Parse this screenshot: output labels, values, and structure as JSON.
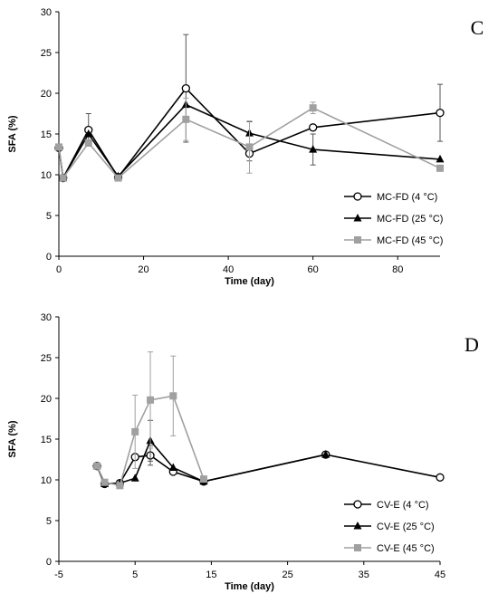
{
  "chart_data": [
    {
      "panel_label": "C",
      "type": "line",
      "xlabel": "Time (day)",
      "ylabel": "SFA (%)",
      "xlim": [
        0,
        90
      ],
      "ylim": [
        0,
        30
      ],
      "x_ticks": [
        0,
        20,
        40,
        60,
        80
      ],
      "y_ticks": [
        0,
        5,
        10,
        15,
        20,
        25,
        30
      ],
      "grid": false,
      "legend_position": "bottom-right",
      "series": [
        {
          "name": "MC-FD (4 °C)",
          "marker": "circle-open",
          "color": "#000000",
          "x": [
            0,
            1,
            7,
            14,
            30,
            45,
            60,
            90
          ],
          "y": [
            13.3,
            9.6,
            15.5,
            9.7,
            20.6,
            12.6,
            15.8,
            17.6
          ],
          "error": [
            0,
            0,
            2.0,
            0,
            6.6,
            0.9,
            0,
            3.5
          ]
        },
        {
          "name": "MC-FD (25 °C)",
          "marker": "triangle",
          "color": "#000000",
          "x": [
            0,
            1,
            7,
            14,
            30,
            45,
            60,
            90
          ],
          "y": [
            13.4,
            9.6,
            15.0,
            9.8,
            18.6,
            15.1,
            13.1,
            11.9
          ],
          "error": [
            0,
            0,
            0,
            0,
            0,
            1.4,
            1.9,
            0
          ]
        },
        {
          "name": "MC-FD (45 °C)",
          "marker": "square",
          "color": "#a0a0a0",
          "x": [
            0,
            1,
            7,
            14,
            30,
            45,
            60,
            90
          ],
          "y": [
            13.4,
            9.6,
            13.9,
            9.6,
            16.8,
            13.4,
            18.2,
            10.8
          ],
          "error": [
            0,
            0,
            0,
            0,
            2.6,
            3.2,
            0.7,
            0
          ]
        }
      ]
    },
    {
      "panel_label": "D",
      "type": "line",
      "xlabel": "Time (day)",
      "ylabel": "SFA (%)",
      "xlim": [
        -5,
        45
      ],
      "ylim": [
        0,
        30
      ],
      "x_ticks": [
        -5,
        5,
        15,
        25,
        35,
        45
      ],
      "y_ticks": [
        0,
        5,
        10,
        15,
        20,
        25,
        30
      ],
      "grid": false,
      "legend_position": "bottom-right",
      "series": [
        {
          "name": "CV-E (4 °C)",
          "marker": "circle-open",
          "color": "#000000",
          "x": [
            0,
            1,
            3,
            5,
            7,
            10,
            14,
            30,
            45
          ],
          "y": [
            11.7,
            9.5,
            9.6,
            12.8,
            13.0,
            11.0,
            9.8,
            13.1,
            10.3
          ],
          "error": [
            0,
            0,
            0,
            0,
            1.2,
            0,
            0,
            0,
            0
          ]
        },
        {
          "name": "CV-E (25 °C)",
          "marker": "triangle",
          "color": "#000000",
          "x": [
            0,
            1,
            3,
            5,
            7,
            10,
            14,
            30
          ],
          "y": [
            11.7,
            9.5,
            9.6,
            10.2,
            14.8,
            11.5,
            9.8,
            13.1
          ],
          "error": [
            0,
            0,
            0,
            0,
            2.5,
            0,
            0,
            0
          ]
        },
        {
          "name": "CV-E (45 °C)",
          "marker": "square",
          "color": "#a0a0a0",
          "x": [
            0,
            1,
            3,
            5,
            7,
            10,
            14
          ],
          "y": [
            11.7,
            9.7,
            9.3,
            15.9,
            19.8,
            20.3,
            10.1
          ],
          "error": [
            0,
            0,
            0,
            4.5,
            5.9,
            4.9,
            0
          ]
        }
      ]
    }
  ]
}
